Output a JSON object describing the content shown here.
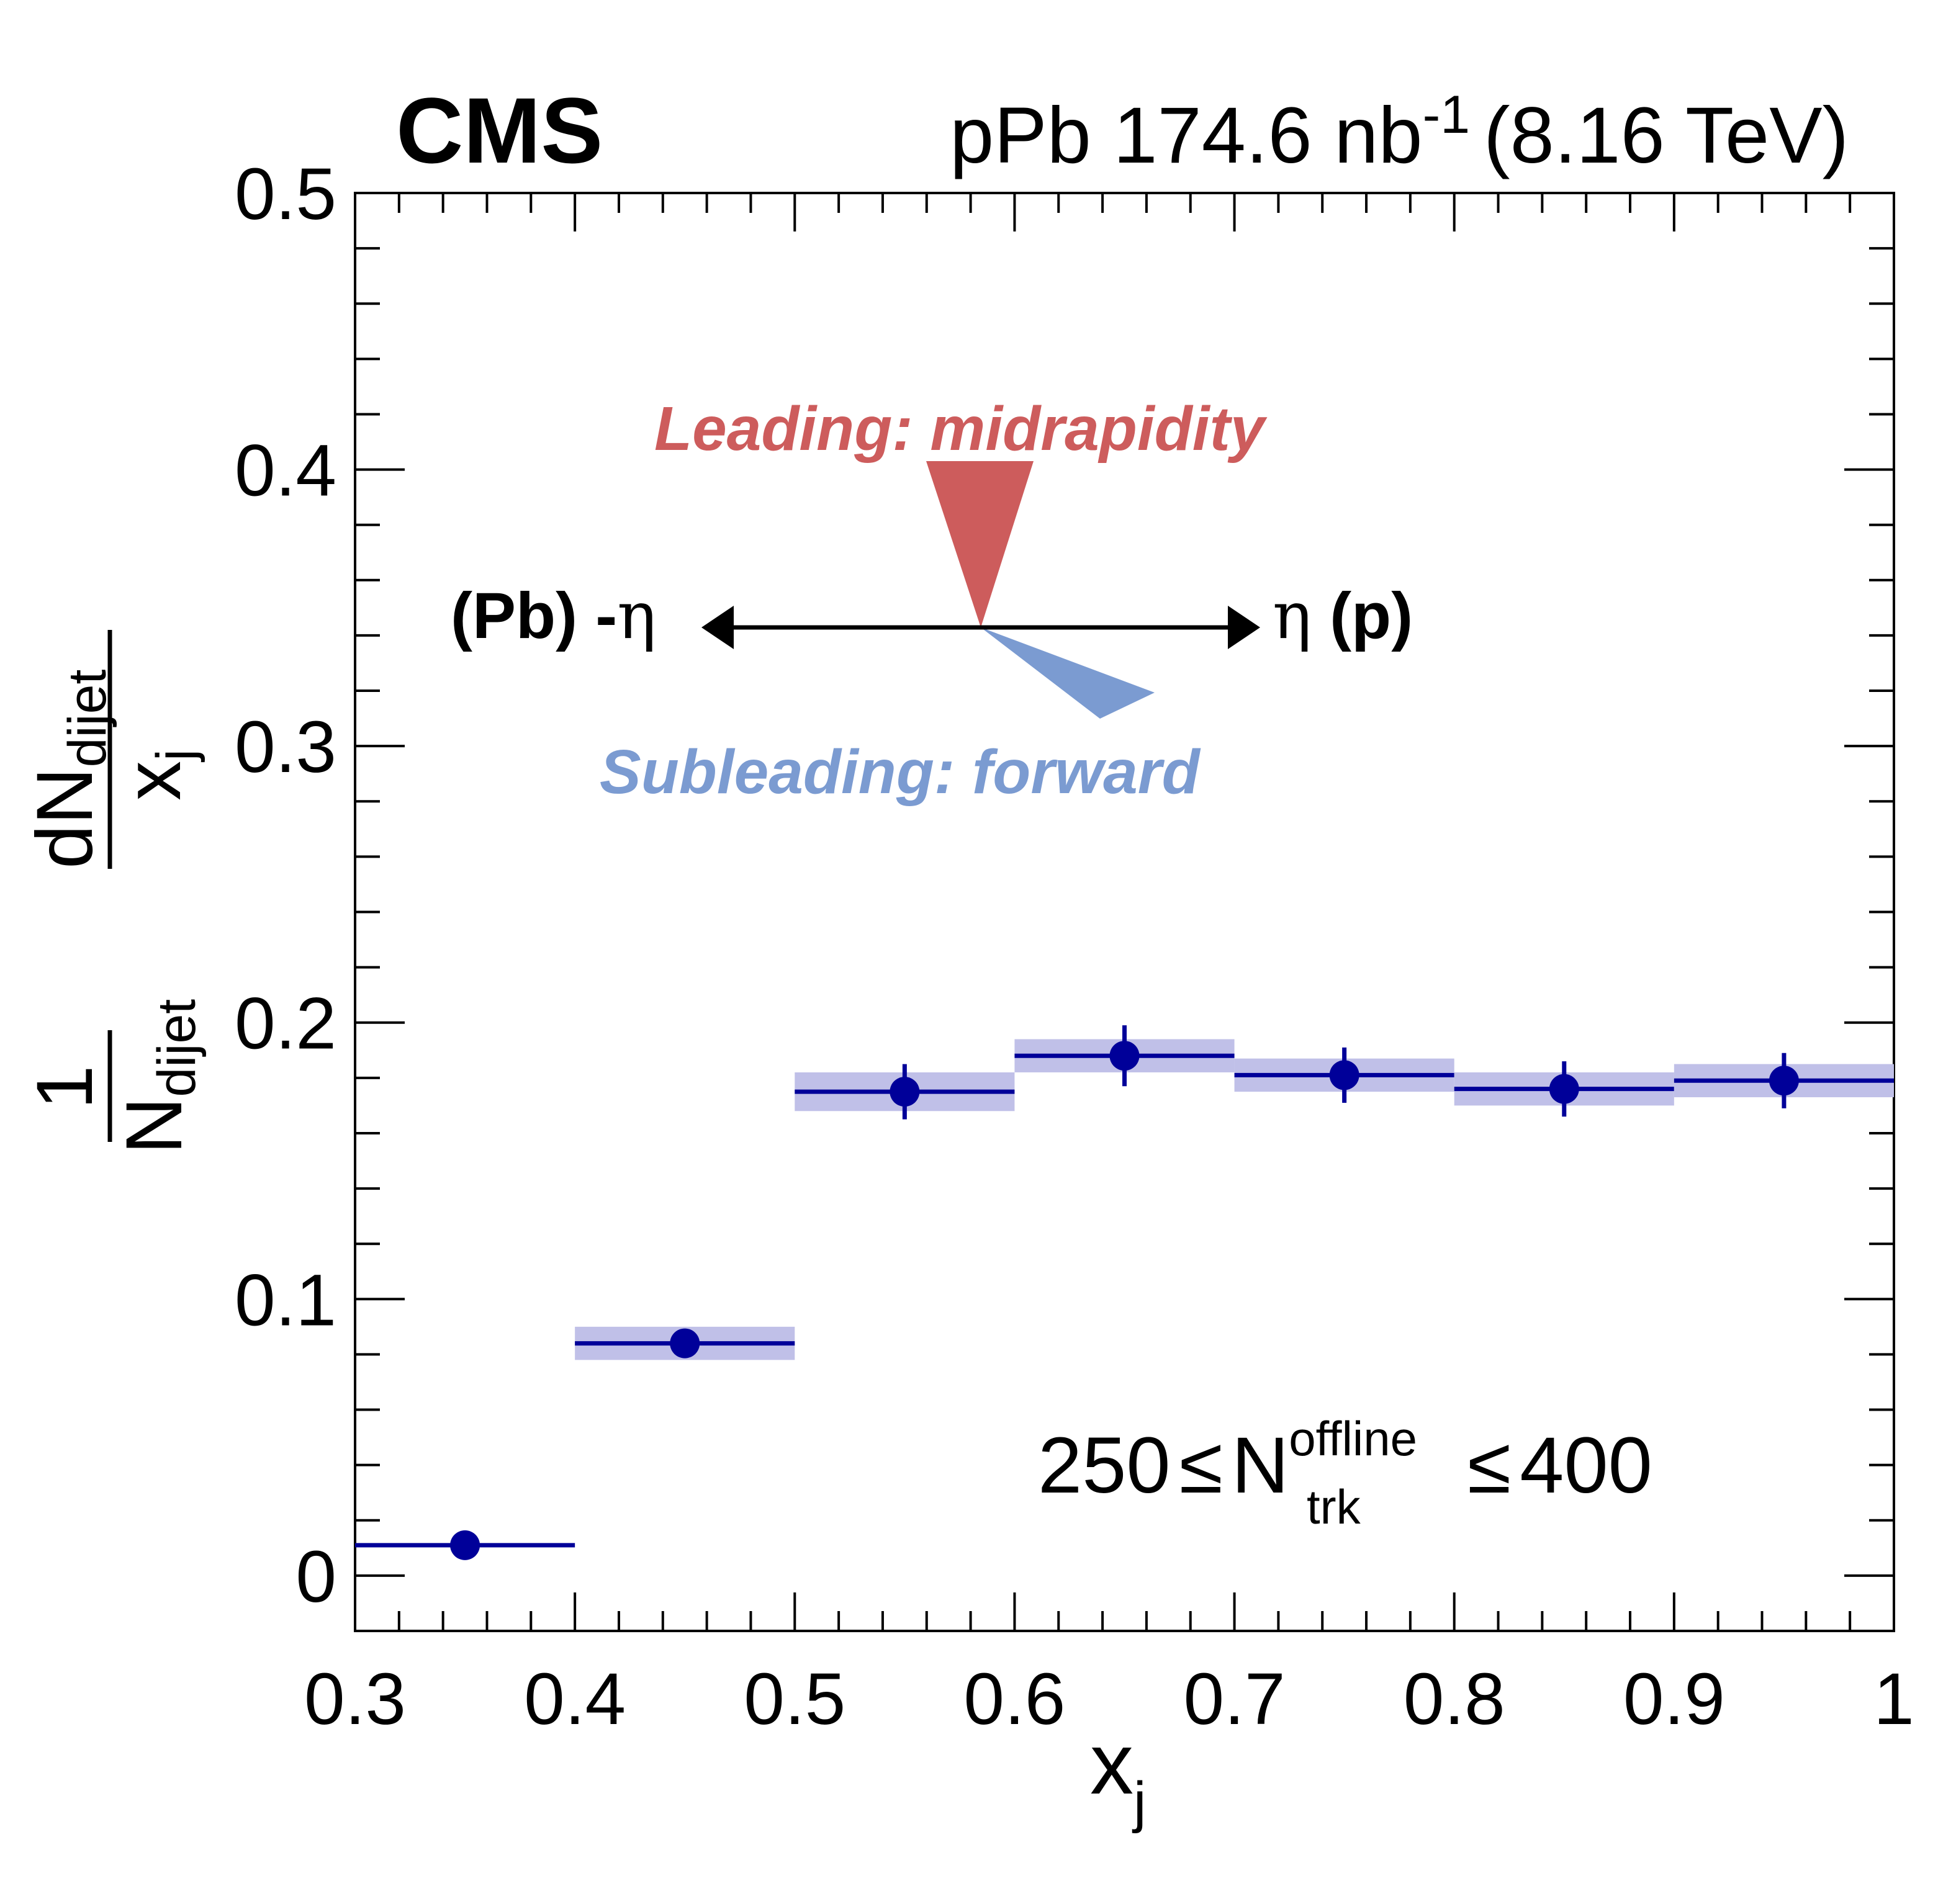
{
  "header": {
    "experiment": "CMS",
    "lumi_main": "pPb 174.6 nb",
    "lumi_sup": "-1",
    "energy": "(8.16 TeV)"
  },
  "annotations": {
    "leading": "Leading: midrapidity",
    "subleading": "Subleading: forward",
    "left_arrow_bold": "(Pb) -",
    "left_arrow_sym": "η",
    "right_arrow_sym": "η",
    "right_arrow_bold": " (p)",
    "selection_lo": "250",
    "selection_leq": "≤",
    "selection_N": "N",
    "selection_sup": "offline",
    "selection_sub": "trk",
    "selection_hi": "400"
  },
  "colors": {
    "data": "#000099",
    "syst_band": "#c0c0e8",
    "leading": "#cd5c5c",
    "subleading": "#7b9bd1"
  },
  "chart_data": {
    "type": "scatter",
    "title": "",
    "xlabel": "x",
    "xlabel_sub": "j",
    "ylabel": "1/N_dijet dN_dijet/x_j",
    "xlim": [
      0.3,
      1.0
    ],
    "ylim": [
      -0.02,
      0.5
    ],
    "x_ticks": [
      "0.3",
      "0.4",
      "0.5",
      "0.6",
      "0.7",
      "0.8",
      "0.9",
      "1"
    ],
    "y_ticks": [
      "0",
      "0.1",
      "0.2",
      "0.3",
      "0.4",
      "0.5"
    ],
    "series": [
      {
        "points": [
          {
            "x": 0.35,
            "x_lo": 0.3,
            "x_hi": 0.4,
            "y": 0.011,
            "stat": 0.0,
            "syst": 0.0
          },
          {
            "x": 0.45,
            "x_lo": 0.4,
            "x_hi": 0.5,
            "y": 0.084,
            "stat": 0.004,
            "syst": 0.006
          },
          {
            "x": 0.55,
            "x_lo": 0.5,
            "x_hi": 0.6,
            "y": 0.175,
            "stat": 0.01,
            "syst": 0.007
          },
          {
            "x": 0.65,
            "x_lo": 0.6,
            "x_hi": 0.7,
            "y": 0.188,
            "stat": 0.011,
            "syst": 0.006
          },
          {
            "x": 0.75,
            "x_lo": 0.7,
            "x_hi": 0.8,
            "y": 0.181,
            "stat": 0.01,
            "syst": 0.006
          },
          {
            "x": 0.85,
            "x_lo": 0.8,
            "x_hi": 0.9,
            "y": 0.176,
            "stat": 0.01,
            "syst": 0.006
          },
          {
            "x": 0.95,
            "x_lo": 0.9,
            "x_hi": 1.0,
            "y": 0.179,
            "stat": 0.01,
            "syst": 0.006
          }
        ]
      }
    ]
  }
}
